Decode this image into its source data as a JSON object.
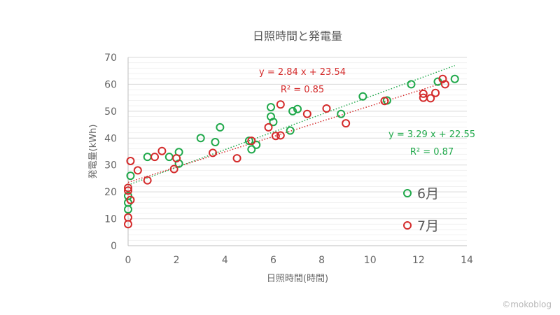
{
  "chart_data": {
    "type": "scatter",
    "title": "日照時間と発電量",
    "xlabel": "日照時間(時間)",
    "ylabel": "発電量(kWh)",
    "xlim": [
      0,
      14
    ],
    "ylim": [
      0,
      70
    ],
    "x_ticks": [
      0,
      2,
      4,
      6,
      8,
      10,
      12,
      14
    ],
    "y_ticks": [
      0,
      10,
      20,
      30,
      40,
      50,
      60,
      70
    ],
    "grid": "horizontal",
    "legend_position": "right",
    "series": [
      {
        "name": "6月",
        "color": "#1fa84a",
        "trendline": {
          "slope": 3.29,
          "intercept": 22.55
        },
        "equation": "y = 3.29 x + 22.55",
        "r2": "R² = 0.87",
        "points": [
          [
            0.0,
            18.5
          ],
          [
            0.0,
            16.0
          ],
          [
            0.0,
            13.5
          ],
          [
            0.1,
            26.0
          ],
          [
            0.8,
            33.0
          ],
          [
            1.7,
            33.0
          ],
          [
            2.1,
            34.8
          ],
          [
            2.1,
            30.5
          ],
          [
            3.0,
            40.0
          ],
          [
            3.6,
            38.5
          ],
          [
            3.8,
            44.0
          ],
          [
            5.0,
            39.0
          ],
          [
            5.1,
            35.8
          ],
          [
            5.3,
            37.5
          ],
          [
            5.9,
            51.5
          ],
          [
            5.9,
            48.0
          ],
          [
            6.0,
            46.0
          ],
          [
            6.7,
            42.8
          ],
          [
            6.8,
            50.0
          ],
          [
            7.0,
            50.8
          ],
          [
            8.8,
            49.0
          ],
          [
            9.7,
            55.5
          ],
          [
            10.7,
            54.0
          ],
          [
            11.7,
            60.0
          ],
          [
            12.8,
            61.0
          ],
          [
            13.5,
            62.0
          ]
        ]
      },
      {
        "name": "7月",
        "color": "#d42b2b",
        "trendline": {
          "slope": 2.84,
          "intercept": 23.54
        },
        "equation": "y = 2.84 x + 23.54",
        "r2": "R² = 0.85",
        "points": [
          [
            0.0,
            21.5
          ],
          [
            0.0,
            20.5
          ],
          [
            0.0,
            10.5
          ],
          [
            0.0,
            8.0
          ],
          [
            0.1,
            17.0
          ],
          [
            0.1,
            31.5
          ],
          [
            0.4,
            28.0
          ],
          [
            0.8,
            24.3
          ],
          [
            1.1,
            33.0
          ],
          [
            1.4,
            35.2
          ],
          [
            1.9,
            28.5
          ],
          [
            2.0,
            32.5
          ],
          [
            3.5,
            34.5
          ],
          [
            4.5,
            32.5
          ],
          [
            5.1,
            39.0
          ],
          [
            5.8,
            44.0
          ],
          [
            6.1,
            40.8
          ],
          [
            6.3,
            41.0
          ],
          [
            6.3,
            52.5
          ],
          [
            7.4,
            49.0
          ],
          [
            8.2,
            51.0
          ],
          [
            9.0,
            45.5
          ],
          [
            10.6,
            53.8
          ],
          [
            12.2,
            56.5
          ],
          [
            12.2,
            55.0
          ],
          [
            12.5,
            54.8
          ],
          [
            12.7,
            56.8
          ],
          [
            13.0,
            62.0
          ],
          [
            13.1,
            60.0
          ]
        ]
      }
    ]
  },
  "watermark": "©mokoblog"
}
